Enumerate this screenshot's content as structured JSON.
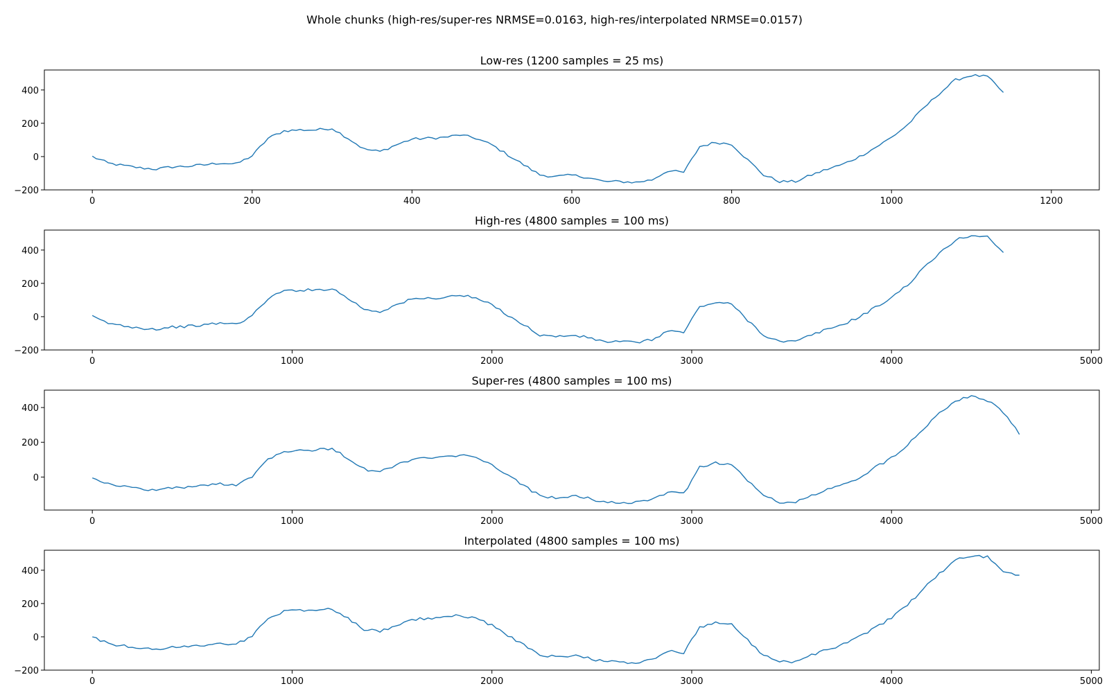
{
  "figure": {
    "suptitle": "Whole chunks (high-res/super-res NRMSE=0.0163, high-res/interpolated NRMSE=0.0157)"
  },
  "colors": {
    "line": "#1f77b4"
  },
  "chart_data": [
    {
      "type": "line",
      "title": "Low-res (1200 samples = 25 ms)",
      "xlabel": "",
      "ylabel": "",
      "xlim": [
        -60,
        1260
      ],
      "ylim": [
        -200,
        520
      ],
      "xticks": [
        0,
        200,
        400,
        600,
        800,
        1000,
        1200
      ],
      "yticks": [
        -200,
        0,
        200,
        400
      ],
      "grid": false,
      "x_step": 20,
      "values": [
        0,
        -40,
        -55,
        -68,
        -75,
        -62,
        -58,
        -50,
        -38,
        -45,
        5,
        110,
        155,
        160,
        160,
        170,
        110,
        45,
        30,
        70,
        105,
        110,
        115,
        130,
        110,
        70,
        10,
        -50,
        -110,
        -120,
        -112,
        -125,
        -150,
        -150,
        -155,
        -140,
        -85,
        -95,
        60,
        85,
        75,
        -20,
        -110,
        -150,
        -150,
        -110,
        -75,
        -45,
        0,
        55,
        115,
        190,
        290,
        380,
        460,
        488,
        480,
        385
      ]
    },
    {
      "type": "line",
      "title": "High-res (4800 samples = 100 ms)",
      "xlabel": "",
      "ylabel": "",
      "xlim": [
        -240,
        5040
      ],
      "ylim": [
        -200,
        520
      ],
      "xticks": [
        0,
        1000,
        2000,
        3000,
        4000,
        5000
      ],
      "yticks": [
        -200,
        0,
        200,
        400
      ],
      "grid": false,
      "x_step": 80,
      "values": [
        0,
        -40,
        -55,
        -68,
        -75,
        -62,
        -58,
        -50,
        -38,
        -45,
        5,
        110,
        155,
        160,
        160,
        170,
        110,
        45,
        30,
        70,
        105,
        110,
        115,
        130,
        110,
        70,
        10,
        -50,
        -110,
        -120,
        -112,
        -125,
        -150,
        -150,
        -155,
        -140,
        -85,
        -95,
        60,
        85,
        75,
        -20,
        -110,
        -150,
        -150,
        -110,
        -75,
        -45,
        0,
        55,
        115,
        190,
        290,
        380,
        460,
        488,
        480,
        385
      ]
    },
    {
      "type": "line",
      "title": "Super-res (4800 samples = 100 ms)",
      "xlabel": "",
      "ylabel": "",
      "xlim": [
        -240,
        5040
      ],
      "ylim": [
        -190,
        500
      ],
      "xticks": [
        0,
        1000,
        2000,
        3000,
        4000,
        5000
      ],
      "yticks": [
        0,
        200,
        400
      ],
      "grid": false,
      "x_step": 80,
      "values": [
        0,
        -40,
        -55,
        -68,
        -75,
        -62,
        -58,
        -50,
        -38,
        -45,
        5,
        105,
        150,
        155,
        155,
        165,
        108,
        45,
        30,
        68,
        103,
        108,
        112,
        128,
        108,
        68,
        10,
        -50,
        -108,
        -118,
        -110,
        -122,
        -145,
        -145,
        -148,
        -135,
        -85,
        -95,
        58,
        82,
        72,
        -20,
        -108,
        -145,
        -145,
        -108,
        -72,
        -45,
        0,
        55,
        112,
        185,
        280,
        370,
        440,
        470,
        440,
        375,
        245
      ]
    },
    {
      "type": "line",
      "title": "Interpolated (4800 samples = 100 ms)",
      "xlabel": "",
      "ylabel": "",
      "xlim": [
        -240,
        5040
      ],
      "ylim": [
        -200,
        520
      ],
      "xticks": [
        0,
        1000,
        2000,
        3000,
        4000,
        5000
      ],
      "yticks": [
        -200,
        0,
        200,
        400
      ],
      "grid": false,
      "x_step": 80,
      "values": [
        0,
        -40,
        -55,
        -68,
        -75,
        -62,
        -58,
        -50,
        -38,
        -45,
        5,
        110,
        155,
        160,
        160,
        170,
        110,
        45,
        30,
        70,
        105,
        110,
        115,
        130,
        110,
        70,
        10,
        -50,
        -110,
        -120,
        -112,
        -125,
        -150,
        -150,
        -155,
        -140,
        -85,
        -95,
        60,
        85,
        75,
        -20,
        -110,
        -150,
        -150,
        -110,
        -75,
        -45,
        0,
        55,
        115,
        190,
        290,
        380,
        460,
        488,
        480,
        385,
        370
      ]
    }
  ]
}
